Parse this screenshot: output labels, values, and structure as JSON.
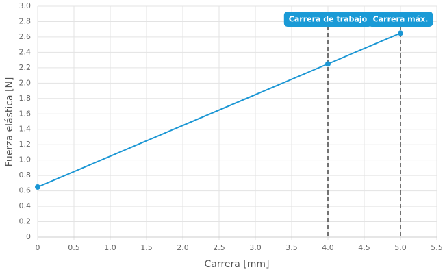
{
  "chart_data": {
    "type": "line",
    "x_label": "Carrera [mm]",
    "y_label": "Fuerza elástica [N]",
    "x": [
      0,
      4,
      5
    ],
    "values": [
      0.65,
      2.25,
      2.65
    ],
    "color": "#1a96d4",
    "xlim": [
      0,
      5.5
    ],
    "xticks": [
      0,
      0.5,
      {
        "value": 1,
        "label": "1.0"
      },
      1.5,
      {
        "value": 2,
        "label": "2.0"
      },
      2.5,
      {
        "value": 3,
        "label": "3.0"
      },
      3.5,
      {
        "value": 4,
        "label": "4.0"
      },
      4.5,
      {
        "value": 5,
        "label": "5.0"
      },
      5.5
    ],
    "ylim": [
      0,
      3
    ],
    "yticks": [
      0,
      0.2,
      0.4,
      0.6,
      0.8,
      {
        "value": 1,
        "label": "1.0"
      },
      1.2,
      1.4,
      1.6,
      1.8,
      {
        "value": 2,
        "label": "2.0"
      },
      2.2,
      2.4,
      2.6,
      2.8,
      {
        "value": 3,
        "label": "3.0"
      }
    ],
    "grid": true,
    "annotations": [
      {
        "x": 4,
        "label": "Carrera de trabajo"
      },
      {
        "x": 5,
        "label": "Carrera máx."
      }
    ],
    "annotation_color": "#1a9ad6"
  }
}
